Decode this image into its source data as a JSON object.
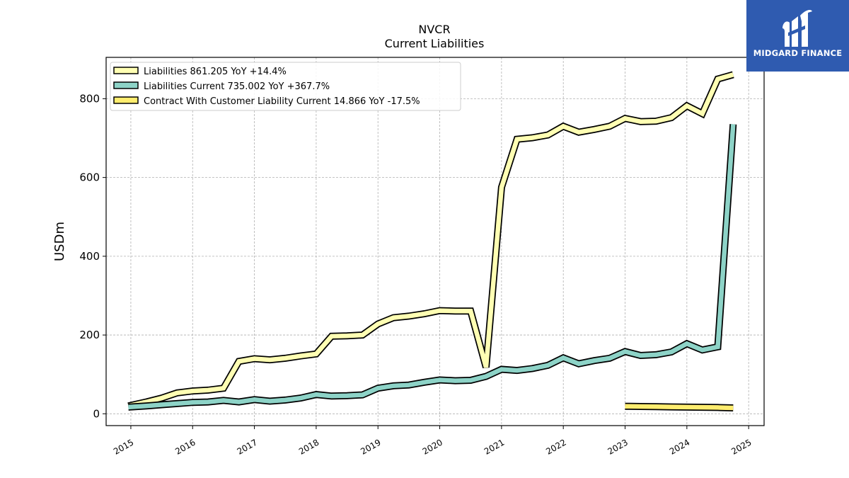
{
  "logo": {
    "text": "MIDGARD FINANCE",
    "color": "#2f5bb0"
  },
  "chart_data": {
    "type": "line",
    "title": "NVCR",
    "subtitle": "Current  Liabilities",
    "ylabel": "USDm",
    "xlabel": "",
    "xlim": [
      2014.6,
      2025.25
    ],
    "ylim": [
      -30,
      905
    ],
    "yticks": [
      0,
      200,
      400,
      600,
      800
    ],
    "xticks": [
      2015,
      2016,
      2017,
      2018,
      2019,
      2020,
      2021,
      2022,
      2023,
      2024,
      2025
    ],
    "grid": true,
    "legend_position": "top-left",
    "series": [
      {
        "name": "Liabilities",
        "legend": "Liabilities  861.205 YoY +14.4%",
        "color": "#ffffb3",
        "x": [
          2014.96,
          2015.25,
          2015.5,
          2015.75,
          2016.0,
          2016.25,
          2016.5,
          2016.75,
          2017.0,
          2017.25,
          2017.5,
          2017.75,
          2018.0,
          2018.25,
          2018.5,
          2018.75,
          2019.0,
          2019.25,
          2019.5,
          2019.75,
          2020.0,
          2020.25,
          2020.5,
          2020.75,
          2021.0,
          2021.25,
          2021.5,
          2021.75,
          2022.0,
          2022.25,
          2022.5,
          2022.75,
          2023.0,
          2023.25,
          2023.5,
          2023.75,
          2024.0,
          2024.25,
          2024.5,
          2024.75
        ],
        "y": [
          20,
          30,
          40,
          53,
          58,
          60,
          65,
          133,
          140,
          137,
          141,
          147,
          152,
          197,
          198,
          200,
          228,
          244,
          248,
          254,
          262,
          261,
          261,
          118,
          575,
          697,
          701,
          708,
          730,
          715,
          722,
          730,
          750,
          742,
          743,
          752,
          782,
          762,
          850,
          861.205
        ]
      },
      {
        "name": "Liabilities Current",
        "legend": "Liabilities Current  735.002 YoY +367.7%",
        "color": "#8dd3c7",
        "x": [
          2014.96,
          2015.25,
          2015.5,
          2015.75,
          2016.0,
          2016.25,
          2016.5,
          2016.75,
          2017.0,
          2017.25,
          2017.5,
          2017.75,
          2018.0,
          2018.25,
          2018.5,
          2018.75,
          2019.0,
          2019.25,
          2019.5,
          2019.75,
          2020.0,
          2020.25,
          2020.5,
          2020.75,
          2021.0,
          2021.25,
          2021.5,
          2021.75,
          2022.0,
          2022.25,
          2022.5,
          2022.75,
          2023.0,
          2023.25,
          2023.5,
          2023.75,
          2024.0,
          2024.25,
          2024.5,
          2024.75
        ],
        "y": [
          17,
          20,
          23,
          26,
          29,
          30,
          34,
          30,
          36,
          32,
          35,
          40,
          49,
          45,
          46,
          48,
          65,
          71,
          73,
          80,
          86,
          84,
          85,
          95,
          113,
          110,
          115,
          123,
          142,
          127,
          135,
          141,
          158,
          148,
          150,
          157,
          178,
          162,
          170,
          735.002
        ]
      },
      {
        "name": "Contract With Customer Liability Current",
        "legend": "Contract With Customer Liability Current  14.866 YoY -17.5%",
        "color": "#ffed6f",
        "x": [
          2023.0,
          2023.25,
          2023.5,
          2023.75,
          2024.0,
          2024.25,
          2024.5,
          2024.75
        ],
        "y": [
          19,
          18.5,
          18,
          17.5,
          17,
          16.5,
          16,
          14.866
        ]
      }
    ]
  }
}
